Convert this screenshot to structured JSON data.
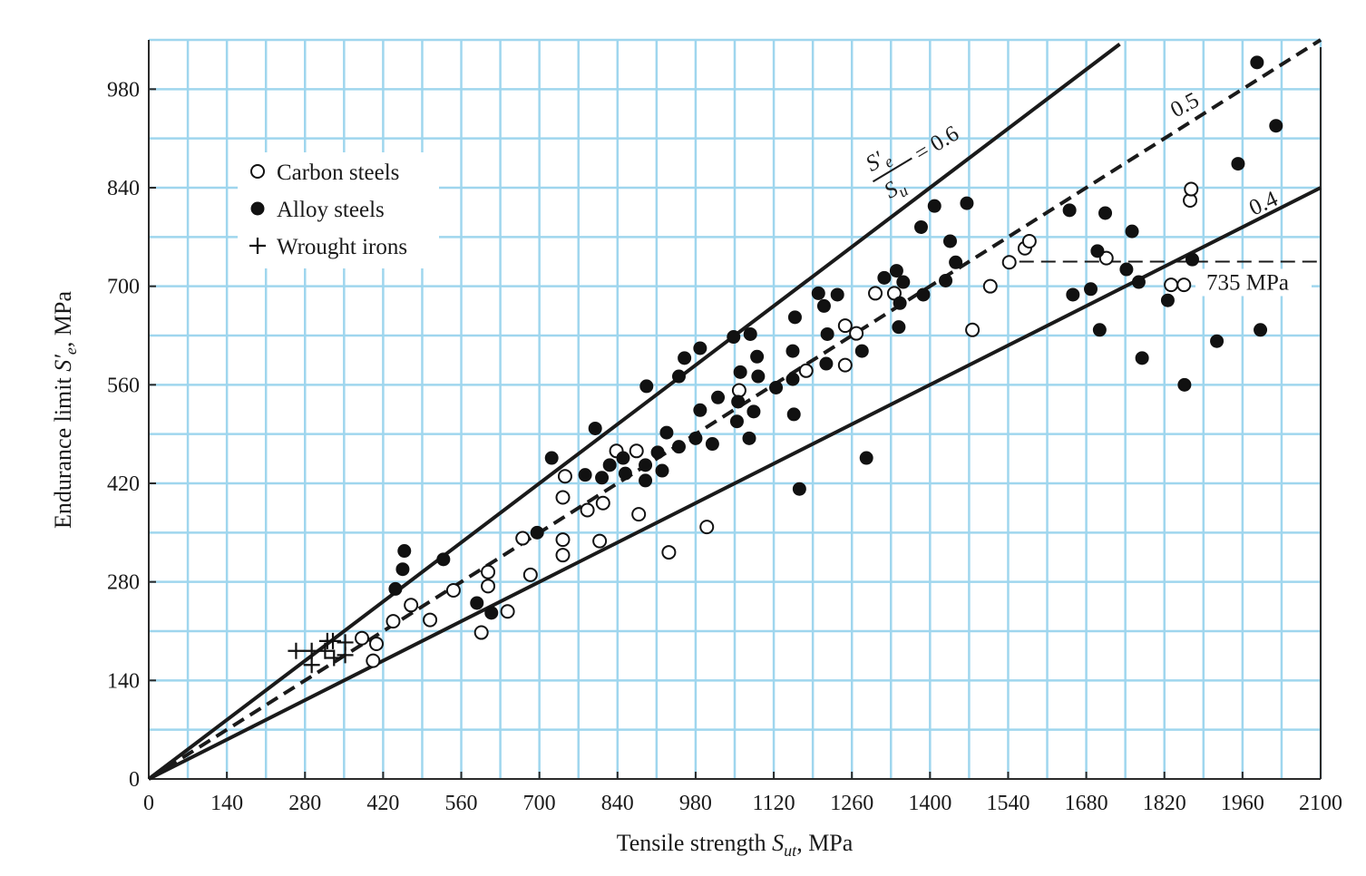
{
  "chart_data": {
    "type": "scatter",
    "xlabel": {
      "main": "Tensile strength ",
      "symbol": "S",
      "sub": "ut",
      "unit": ", MPa"
    },
    "ylabel": {
      "main": "Endurance limit ",
      "symbol": "S′",
      "sub": "e",
      "unit": ", MPa"
    },
    "xlim": [
      0,
      2100
    ],
    "ylim": [
      0,
      1050
    ],
    "x_ticks": [
      0,
      140,
      280,
      420,
      560,
      700,
      840,
      980,
      1120,
      1260,
      1400,
      1540,
      1680,
      1820,
      1960,
      2100
    ],
    "y_ticks": [
      0,
      140,
      280,
      420,
      560,
      700,
      840,
      980
    ],
    "grid": true,
    "legend_position": "top-left",
    "reference_lines": [
      {
        "ratio": 0.6,
        "style": "solid",
        "label_num": "S′",
        "label_num_sub": "e",
        "label_den": "S",
        "label_den_sub": "u",
        "label_value": "= 0.6"
      },
      {
        "ratio": 0.5,
        "style": "dashed",
        "label": "0.5"
      },
      {
        "ratio": 0.4,
        "style": "solid",
        "label": "0.4"
      }
    ],
    "limit_line": {
      "y": 735,
      "x_start": 1560,
      "label": "735 MPa"
    },
    "series": [
      {
        "name": "Carbon steels",
        "marker": "open-circle",
        "points": [
          [
            382,
            200
          ],
          [
            402,
            168
          ],
          [
            408,
            192
          ],
          [
            438,
            224
          ],
          [
            470,
            247
          ],
          [
            504,
            226
          ],
          [
            546,
            268
          ],
          [
            596,
            208
          ],
          [
            608,
            294
          ],
          [
            608,
            274
          ],
          [
            643,
            238
          ],
          [
            670,
            342
          ],
          [
            684,
            290
          ],
          [
            742,
            318
          ],
          [
            742,
            340
          ],
          [
            742,
            400
          ],
          [
            746,
            430
          ],
          [
            786,
            382
          ],
          [
            808,
            338
          ],
          [
            814,
            392
          ],
          [
            838,
            466
          ],
          [
            874,
            466
          ],
          [
            878,
            376
          ],
          [
            932,
            322
          ],
          [
            1000,
            358
          ],
          [
            1058,
            552
          ],
          [
            1178,
            580
          ],
          [
            1248,
            588
          ],
          [
            1248,
            644
          ],
          [
            1268,
            633
          ],
          [
            1302,
            690
          ],
          [
            1336,
            690
          ],
          [
            1508,
            700
          ],
          [
            1542,
            734
          ],
          [
            1570,
            754
          ],
          [
            1578,
            764
          ],
          [
            1716,
            740
          ],
          [
            1832,
            702
          ],
          [
            1855,
            702
          ],
          [
            1866,
            822
          ],
          [
            1868,
            838
          ],
          [
            1476,
            638
          ]
        ]
      },
      {
        "name": "Alloy steels",
        "marker": "filled-circle",
        "points": [
          [
            442,
            270
          ],
          [
            455,
            298
          ],
          [
            458,
            324
          ],
          [
            528,
            312
          ],
          [
            588,
            250
          ],
          [
            614,
            236
          ],
          [
            696,
            350
          ],
          [
            722,
            456
          ],
          [
            782,
            432
          ],
          [
            800,
            498
          ],
          [
            812,
            428
          ],
          [
            826,
            446
          ],
          [
            850,
            456
          ],
          [
            854,
            434
          ],
          [
            890,
            446
          ],
          [
            890,
            424
          ],
          [
            892,
            558
          ],
          [
            912,
            464
          ],
          [
            920,
            438
          ],
          [
            928,
            492
          ],
          [
            950,
            472
          ],
          [
            950,
            572
          ],
          [
            960,
            598
          ],
          [
            980,
            484
          ],
          [
            988,
            524
          ],
          [
            988,
            612
          ],
          [
            1010,
            476
          ],
          [
            1020,
            542
          ],
          [
            1048,
            628
          ],
          [
            1054,
            508
          ],
          [
            1056,
            536
          ],
          [
            1060,
            578
          ],
          [
            1076,
            484
          ],
          [
            1078,
            632
          ],
          [
            1084,
            522
          ],
          [
            1090,
            600
          ],
          [
            1092,
            572
          ],
          [
            1124,
            556
          ],
          [
            1154,
            568
          ],
          [
            1154,
            608
          ],
          [
            1156,
            518
          ],
          [
            1158,
            656
          ],
          [
            1166,
            412
          ],
          [
            1200,
            690
          ],
          [
            1210,
            672
          ],
          [
            1214,
            590
          ],
          [
            1216,
            632
          ],
          [
            1234,
            688
          ],
          [
            1278,
            608
          ],
          [
            1286,
            456
          ],
          [
            1318,
            712
          ],
          [
            1340,
            722
          ],
          [
            1344,
            642
          ],
          [
            1346,
            676
          ],
          [
            1352,
            706
          ],
          [
            1384,
            784
          ],
          [
            1388,
            688
          ],
          [
            1408,
            814
          ],
          [
            1428,
            708
          ],
          [
            1436,
            764
          ],
          [
            1446,
            734
          ],
          [
            1466,
            818
          ],
          [
            1650,
            808
          ],
          [
            1656,
            688
          ],
          [
            1688,
            696
          ],
          [
            1700,
            750
          ],
          [
            1704,
            638
          ],
          [
            1714,
            804
          ],
          [
            1752,
            724
          ],
          [
            1762,
            778
          ],
          [
            1774,
            706
          ],
          [
            1780,
            598
          ],
          [
            1826,
            680
          ],
          [
            1856,
            560
          ],
          [
            1870,
            738
          ],
          [
            1914,
            622
          ],
          [
            1952,
            874
          ],
          [
            1986,
            1018
          ],
          [
            1992,
            638
          ],
          [
            2020,
            928
          ]
        ]
      },
      {
        "name": "Wrought irons",
        "marker": "plus",
        "points": [
          [
            264,
            182
          ],
          [
            292,
            182
          ],
          [
            292,
            162
          ],
          [
            316,
            182
          ],
          [
            320,
            196
          ],
          [
            330,
            196
          ],
          [
            332,
            172
          ],
          [
            352,
            176
          ],
          [
            352,
            194
          ]
        ]
      }
    ]
  }
}
